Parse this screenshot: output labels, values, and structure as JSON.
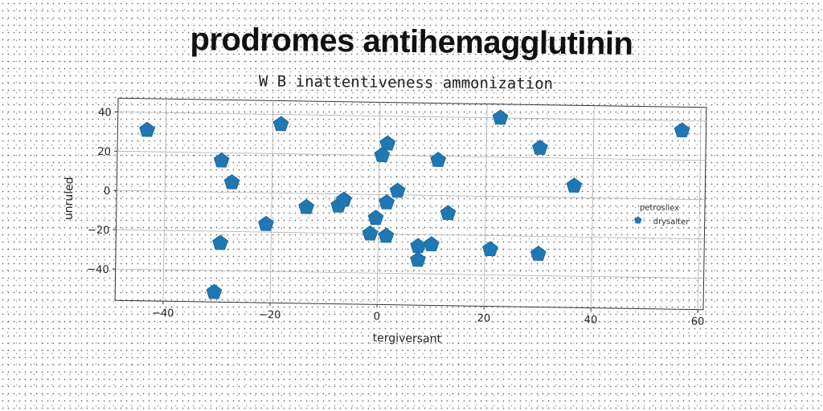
{
  "chart_data": {
    "type": "scatter",
    "title": "prodromes antihemagglutinin",
    "subtitle": "W B inattentiveness ammonization",
    "xlabel": "tergiversant",
    "ylabel": "unruled",
    "xlim": [
      -49,
      61
    ],
    "ylim": [
      -56,
      47
    ],
    "xticks": [
      -40,
      -20,
      0,
      20,
      40,
      60
    ],
    "yticks": [
      40,
      20,
      0,
      -20,
      -40
    ],
    "xtick_labels": [
      "−40",
      "−20",
      "0",
      "20",
      "40",
      "60"
    ],
    "ytick_labels": [
      "40",
      "20",
      "0",
      "−20",
      "−40"
    ],
    "grid": true,
    "legend": {
      "title": "petrosilex",
      "placement": "right"
    },
    "marker": "pentagon",
    "color": "#1f77b4",
    "series": [
      {
        "name": "drysalter",
        "points": [
          [
            -43.5,
            31
          ],
          [
            -18.5,
            35
          ],
          [
            -29.5,
            16
          ],
          [
            -27.5,
            5
          ],
          [
            -29.5,
            -26
          ],
          [
            -30.5,
            -51
          ],
          [
            -21,
            -16
          ],
          [
            -13.5,
            -7
          ],
          [
            -7.5,
            -6
          ],
          [
            -6.5,
            -3
          ],
          [
            -0.5,
            -12
          ],
          [
            -1.5,
            -20
          ],
          [
            1.5,
            -21
          ],
          [
            1.5,
            26
          ],
          [
            0.5,
            20
          ],
          [
            1.5,
            -4
          ],
          [
            3.5,
            2
          ],
          [
            7.5,
            -26
          ],
          [
            10,
            -25
          ],
          [
            7.5,
            -33
          ],
          [
            11,
            18
          ],
          [
            13,
            -9
          ],
          [
            21,
            -27
          ],
          [
            22.5,
            40
          ],
          [
            30,
            25
          ],
          [
            30,
            -29
          ],
          [
            36.5,
            6
          ],
          [
            56.5,
            35
          ]
        ]
      }
    ]
  }
}
